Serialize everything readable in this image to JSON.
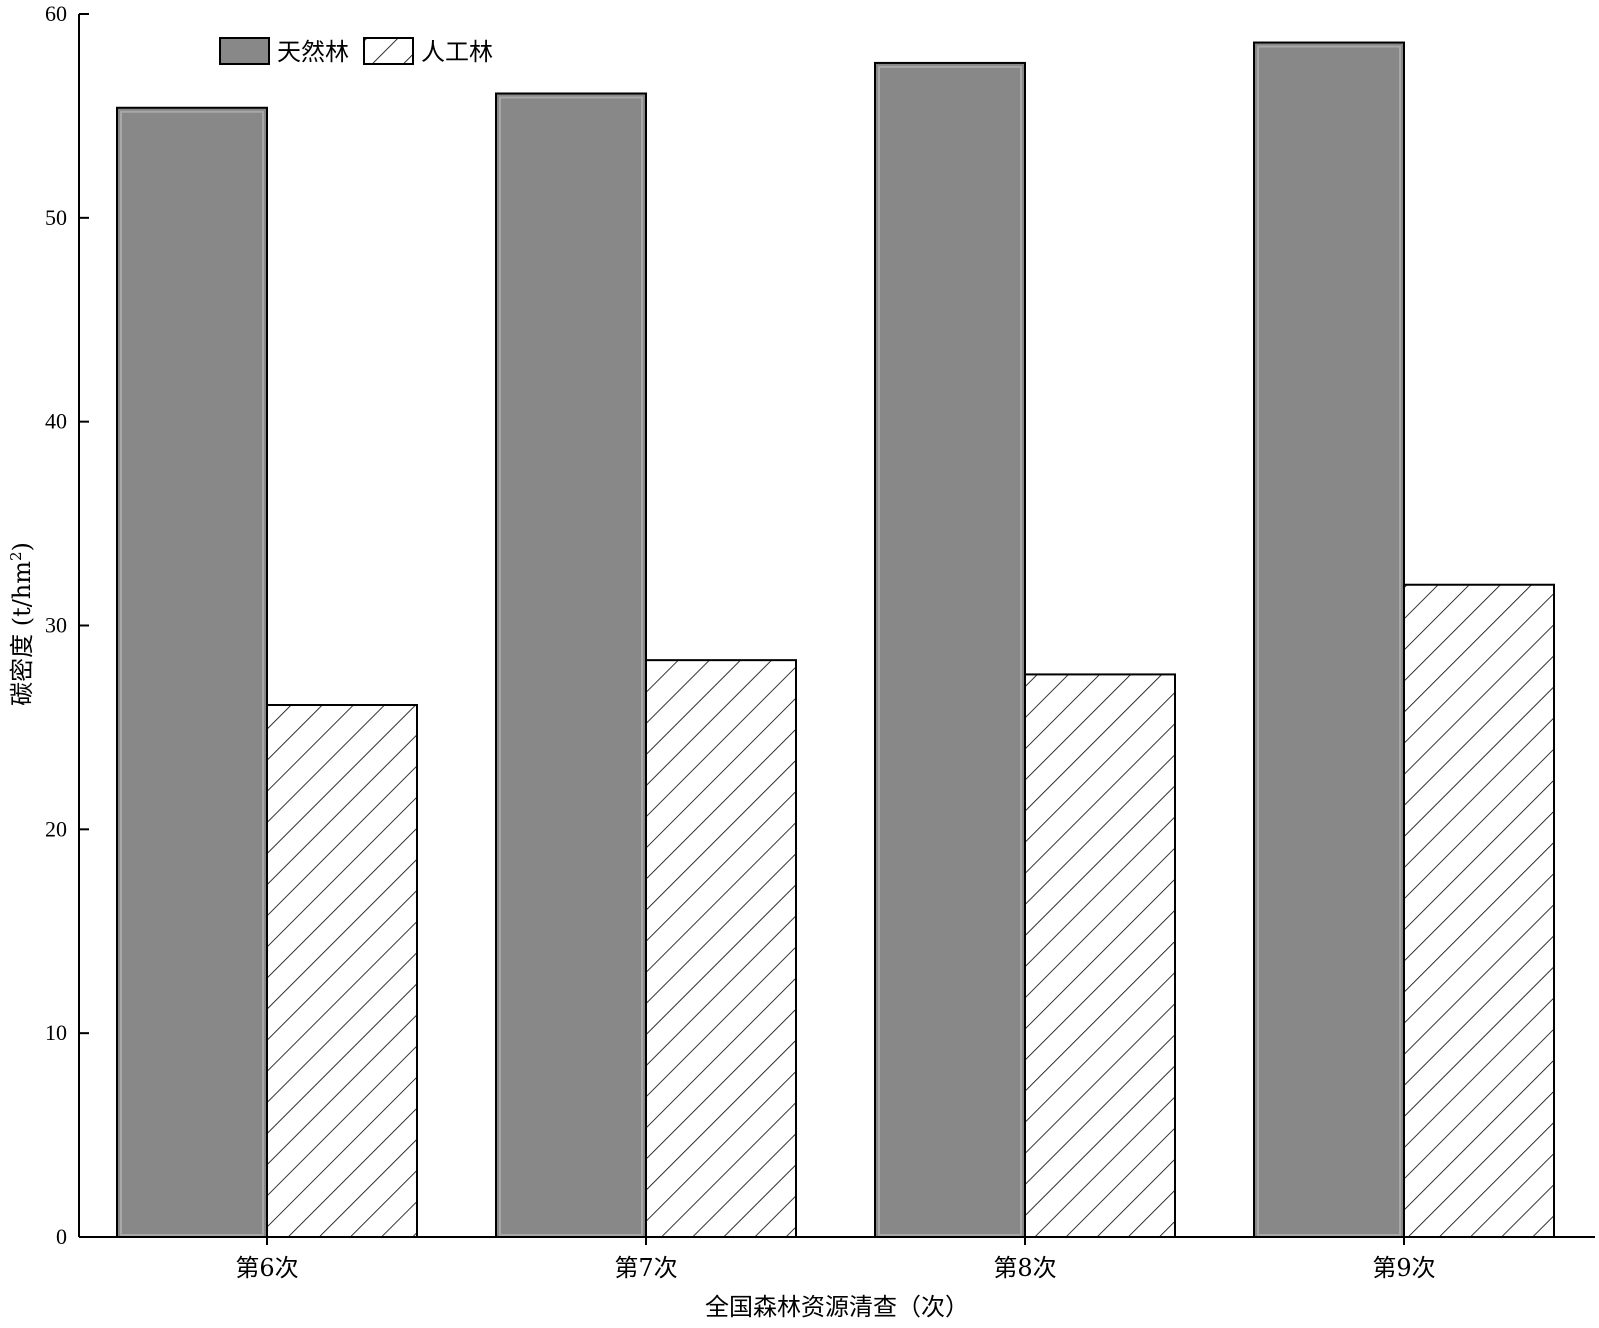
{
  "chart_data": {
    "type": "bar",
    "categories": [
      "第6次",
      "第7次",
      "第8次",
      "第9次"
    ],
    "series": [
      {
        "name": "天然林",
        "values": [
          55.4,
          56.1,
          57.6,
          58.6
        ],
        "color": "#888888",
        "pattern": "solid"
      },
      {
        "name": "人工林",
        "values": [
          26.1,
          28.3,
          27.6,
          32.0
        ],
        "color": "#ffffff",
        "pattern": "hatch"
      }
    ],
    "title": "",
    "xlabel": "全国森林资源清查（次）",
    "ylabel": "碳密度 (t/hm",
    "ylabel_sup": "2",
    "ylabel_close": ")",
    "ylim": [
      0,
      60
    ],
    "yticks": [
      "0",
      "10",
      "20",
      "30",
      "40",
      "50",
      "60"
    ],
    "grid": false,
    "legend_position": "top-left"
  }
}
